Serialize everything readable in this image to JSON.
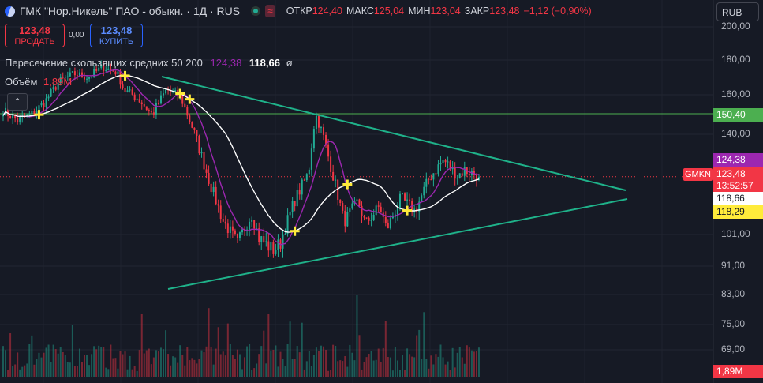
{
  "header": {
    "title": "ГМК \"Нор.Никель\" ПАО - обыкн. · 1Д · RUS",
    "ohlc": [
      {
        "label": "ОТКР",
        "value": "124,40"
      },
      {
        "label": "МАКС",
        "value": "125,04"
      },
      {
        "label": "МИН",
        "value": "123,04"
      },
      {
        "label": "ЗАКР",
        "value": "123,48"
      }
    ],
    "change": "−1,12 (−0,90%)",
    "wave_icon": "≈"
  },
  "trade": {
    "sell_price": "123,48",
    "sell_label": "ПРОДАТЬ",
    "spread": "0,00",
    "buy_price": "123,48",
    "buy_label": "КУПИТЬ"
  },
  "indicator": {
    "name": "Пересечение скользящих средних 50 200",
    "fast_value": "124,38",
    "slow_value": "118,66",
    "extra": "ø"
  },
  "volume": {
    "label": "Объём",
    "value": "1,89M"
  },
  "collapse_icon": "chevron-up-icon",
  "currency": "RUB",
  "tags": {
    "level": "150,40",
    "fast": "124,38",
    "close": "123,48",
    "countdown": "13:52:57",
    "slow": "118,66",
    "low": "118,29",
    "volume": "1,89M",
    "symbol": "GMKN"
  },
  "colors": {
    "up": "#22ab94",
    "down": "#f23645",
    "ma50": "#9c27b0",
    "ma200": "#ffffff",
    "trendline": "#1fb28a",
    "level": "#4caf50",
    "cross": "#ffeb3b"
  },
  "chart_data": {
    "type": "candlestick",
    "y_ticks": [
      "200,00",
      "180,00",
      "160,00",
      "140,00",
      "101,00",
      "91,00",
      "83,00",
      "75,00",
      "69,00"
    ],
    "horizontal_level": 150.4,
    "close": 123.48,
    "ma_fast_last": 124.38,
    "ma_slow_last": 118.66,
    "price_path": [
      [
        0,
        152
      ],
      [
        2,
        147
      ],
      [
        4,
        150
      ],
      [
        6,
        157
      ],
      [
        8,
        168
      ],
      [
        10,
        172
      ],
      [
        12,
        170
      ],
      [
        14,
        176
      ],
      [
        16,
        173
      ],
      [
        17,
        163
      ],
      [
        19,
        158
      ],
      [
        21,
        150
      ],
      [
        23,
        163
      ],
      [
        25,
        159
      ],
      [
        27,
        140
      ],
      [
        29,
        122
      ],
      [
        31,
        106
      ],
      [
        33,
        98
      ],
      [
        35,
        109
      ],
      [
        36,
        100
      ],
      [
        38,
        96
      ],
      [
        39,
        98
      ],
      [
        41,
        114
      ],
      [
        43,
        125
      ],
      [
        44,
        150
      ],
      [
        45,
        140
      ],
      [
        47,
        118
      ],
      [
        48,
        106
      ],
      [
        50,
        114
      ],
      [
        51,
        105
      ],
      [
        53,
        112
      ],
      [
        54,
        103
      ],
      [
        56,
        115
      ],
      [
        58,
        110
      ],
      [
        60,
        123
      ],
      [
        62,
        130
      ],
      [
        64,
        124
      ],
      [
        65,
        126
      ],
      [
        67,
        124
      ]
    ],
    "trendlines": [
      {
        "name": "upper",
        "from": "upper-left",
        "to": "apex"
      },
      {
        "name": "lower",
        "from": "lower-left",
        "to": "apex"
      }
    ]
  }
}
